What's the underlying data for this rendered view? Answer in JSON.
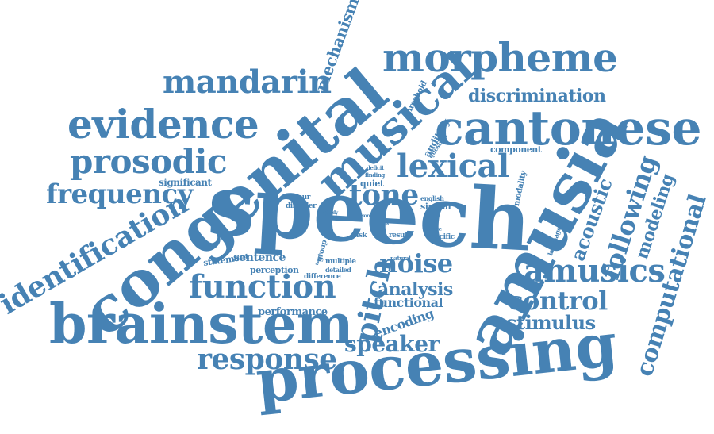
{
  "palette": {
    "word_color": "#4682b4",
    "background": "#ffffff"
  },
  "words": [
    "speech",
    "congenital",
    "amusia",
    "processing",
    "brainstem",
    "cantonese",
    "musical",
    "morpheme",
    "evidence",
    "mandarin",
    "prosodic",
    "lexical",
    "identification",
    "frequency",
    "function",
    "tone",
    "pitch",
    "noise",
    "amusics",
    "control",
    "response",
    "speaker",
    "computational",
    "following",
    "acoustic",
    "modeling",
    "discrimination",
    "analysis",
    "stimulus",
    "mechanism",
    "functional",
    "encoding",
    "performance",
    "sentence",
    "statement",
    "significant",
    "component",
    "threshold",
    "auditory",
    "question",
    "deficit",
    "finding",
    "quiet",
    "contour",
    "disorder",
    "subtle",
    "study",
    "word",
    "english",
    "similar",
    "stage",
    "specific",
    "result",
    "task",
    "focus",
    "group",
    "target",
    "multiple",
    "detailed",
    "difference",
    "perception",
    "natural",
    "modality",
    "language",
    "its"
  ]
}
